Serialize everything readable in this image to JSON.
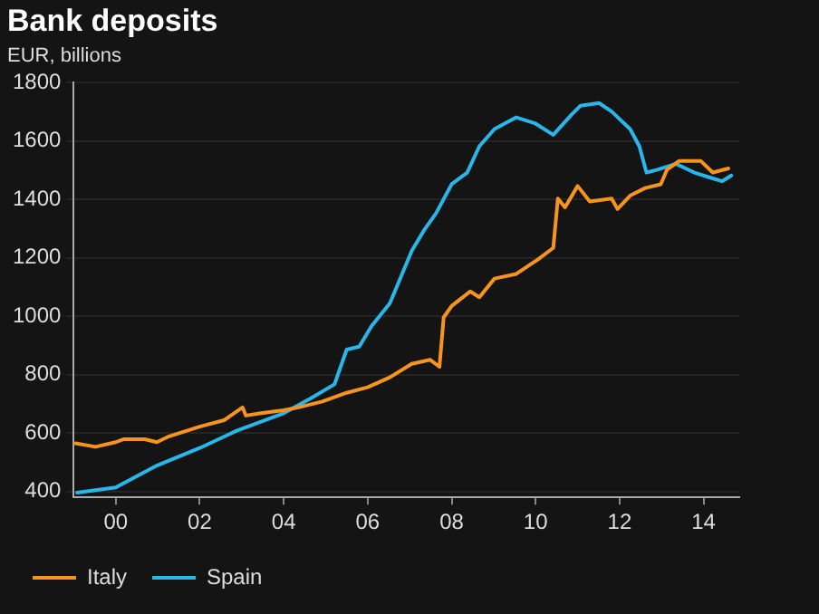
{
  "chart_data": {
    "type": "line",
    "title": "Bank deposits",
    "subtitle": "EUR, billions",
    "xlim": [
      1999,
      2014.85
    ],
    "xticks": [
      {
        "value": 2000,
        "label": "00"
      },
      {
        "value": 2002,
        "label": "02"
      },
      {
        "value": 2004,
        "label": "04"
      },
      {
        "value": 2006,
        "label": "06"
      },
      {
        "value": 2008,
        "label": "08"
      },
      {
        "value": 2010,
        "label": "10"
      },
      {
        "value": 2012,
        "label": "12"
      },
      {
        "value": 2014,
        "label": "14"
      }
    ],
    "ylim": [
      380,
      1800
    ],
    "yticks": [
      400,
      600,
      800,
      1000,
      1200,
      1400,
      1600,
      1800
    ],
    "grid": "y",
    "legend": "bottom",
    "marker": "none",
    "line_style": "solid",
    "series": [
      {
        "name": "Italy",
        "color": "#f7941d",
        "x": [
          1999.04,
          1999.52,
          2000,
          2000.18,
          2000.69,
          2000.98,
          2001.27,
          2002,
          2002.58,
          2003.02,
          2003.1,
          2003.46,
          2004,
          2004.35,
          2004.92,
          2005.5,
          2006,
          2006.53,
          2007.05,
          2007.49,
          2007.71,
          2007.81,
          2008,
          2008.44,
          2008.66,
          2009.02,
          2009.54,
          2010.05,
          2010.42,
          2010.53,
          2010.7,
          2011,
          2011.29,
          2011.81,
          2011.95,
          2012.25,
          2012.61,
          2012.98,
          2013.13,
          2013.42,
          2013.93,
          2014.22,
          2014.59
        ],
        "values": [
          565,
          553,
          569,
          579,
          579,
          569,
          589,
          622,
          644,
          688,
          660,
          668,
          678,
          688,
          708,
          738,
          757,
          791,
          837,
          851,
          827,
          996,
          1035,
          1085,
          1065,
          1129,
          1145,
          1194,
          1234,
          1403,
          1373,
          1446,
          1393,
          1403,
          1367,
          1413,
          1439,
          1452,
          1502,
          1532,
          1532,
          1492,
          1506
        ]
      },
      {
        "name": "Spain",
        "color": "#29b6e8",
        "x": [
          1999.08,
          2000,
          2000.98,
          2002,
          2002.88,
          2004,
          2004.63,
          2005.21,
          2005.5,
          2005.8,
          2006.09,
          2006.53,
          2007.05,
          2007.34,
          2007.63,
          2008,
          2008.37,
          2008.66,
          2009.02,
          2009.54,
          2009.98,
          2010.42,
          2010.86,
          2011.07,
          2011.51,
          2011.81,
          2012.25,
          2012.47,
          2012.64,
          2012.9,
          2013.34,
          2013.78,
          2014.22,
          2014.44,
          2014.66
        ],
        "values": [
          396,
          414,
          489,
          549,
          608,
          668,
          718,
          767,
          886,
          896,
          966,
          1045,
          1224,
          1294,
          1353,
          1452,
          1492,
          1582,
          1641,
          1681,
          1661,
          1621,
          1691,
          1721,
          1730,
          1701,
          1641,
          1582,
          1492,
          1502,
          1522,
          1492,
          1472,
          1462,
          1482
        ]
      }
    ]
  }
}
